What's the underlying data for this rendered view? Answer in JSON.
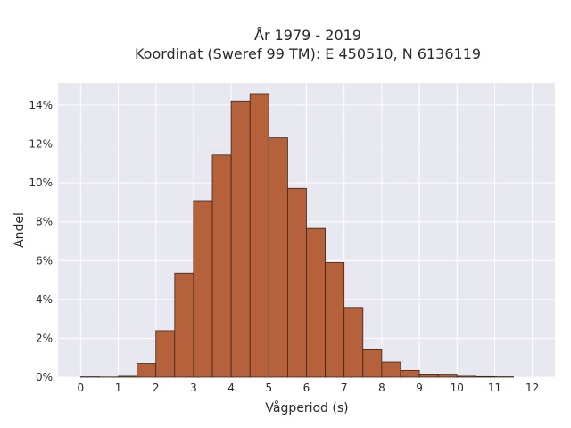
{
  "chart_data": {
    "type": "bar",
    "title": [
      "År 1979 - 2019",
      "Koordinat (Sweref 99 TM): E 450510, N 6136119"
    ],
    "xlabel": "Vågperiod (s)",
    "ylabel": "Andel",
    "xlim": [
      -0.6,
      12.6
    ],
    "ylim": [
      0,
      0.1515
    ],
    "xticks": [
      0,
      1,
      2,
      3,
      4,
      5,
      6,
      7,
      8,
      9,
      10,
      11,
      12
    ],
    "xtick_labels": [
      "0",
      "1",
      "2",
      "3",
      "4",
      "5",
      "6",
      "7",
      "8",
      "9",
      "10",
      "11",
      "12"
    ],
    "yticks": [
      0,
      0.02,
      0.04,
      0.06,
      0.08,
      0.1,
      0.12,
      0.14
    ],
    "ytick_labels": [
      "0%",
      "2%",
      "4%",
      "6%",
      "8%",
      "10%",
      "12%",
      "14%"
    ],
    "bin_width": 0.5,
    "bin_starts": [
      0,
      0.5,
      1,
      1.5,
      2,
      2.5,
      3,
      3.5,
      4,
      4.5,
      5,
      5.5,
      6,
      6.5,
      7,
      7.5,
      8,
      8.5,
      9,
      9.5,
      10,
      10.5,
      11,
      11.5
    ],
    "values": [
      0.0002,
      0.0001,
      0.0005,
      0.0071,
      0.0239,
      0.0536,
      0.0909,
      0.1144,
      0.1422,
      0.146,
      0.1232,
      0.0972,
      0.0766,
      0.059,
      0.0359,
      0.0145,
      0.0078,
      0.0035,
      0.0012,
      0.0011,
      0.0005,
      0.0003,
      0.0002,
      0.0
    ],
    "bar_color": "#b5623c",
    "edge_color": "#3b2418",
    "plot_background": "#e8e8f1",
    "grid": true
  }
}
